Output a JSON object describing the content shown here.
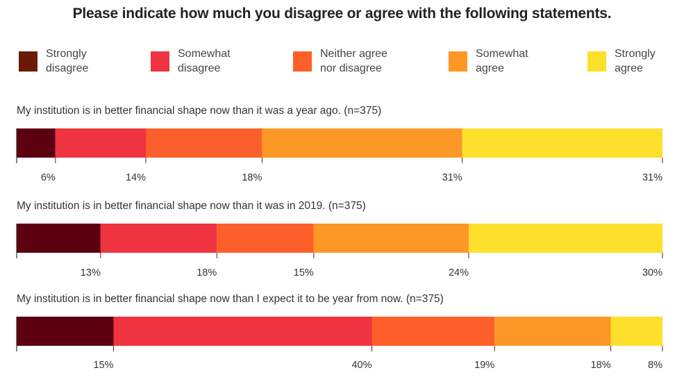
{
  "chart_data": {
    "type": "bar",
    "orientation": "horizontal-stacked",
    "title": "Please indicate how much you disagree or agree with the following statements.",
    "legend_position": "top",
    "series": [
      {
        "name": "Strongly\ndisagree",
        "color": "#6b1a05"
      },
      {
        "name": "Somewhat\ndisagree",
        "color": "#ef3340"
      },
      {
        "name": "Neither agree\nnor disagree",
        "color": "#fd5f2a"
      },
      {
        "name": "Somewhat\nagree",
        "color": "#fd9726"
      },
      {
        "name": "Strongly\nagree",
        "color": "#fde02c"
      }
    ],
    "categories": [
      "My institution is in better financial shape now than it was a year ago. (n=375)",
      "My institution is in better financial shape now than it was in 2019. (n=375)",
      "My institution is in better financial shape now than I expect it to be year from now. (n=375)"
    ],
    "values": [
      [
        6,
        14,
        18,
        31,
        31
      ],
      [
        13,
        18,
        15,
        24,
        30
      ],
      [
        15,
        40,
        19,
        18,
        8
      ]
    ],
    "value_labels": [
      [
        "6%",
        "14%",
        "18%",
        "31%",
        "31%"
      ],
      [
        "13%",
        "18%",
        "15%",
        "24%",
        "30%"
      ],
      [
        "15%",
        "40%",
        "19%",
        "18%",
        "8%"
      ]
    ],
    "bar_end_color": "#5c0010"
  }
}
